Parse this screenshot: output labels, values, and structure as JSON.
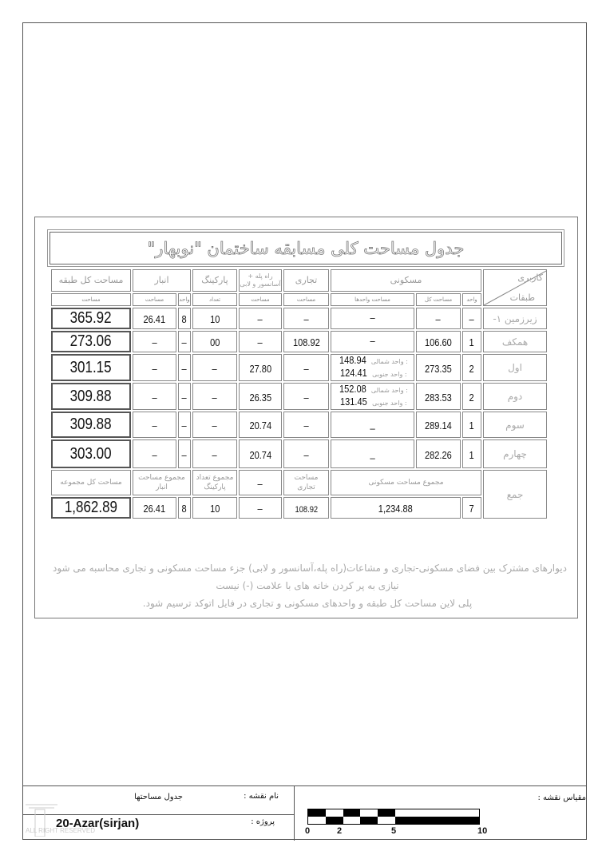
{
  "title": "جدول مساحت کلی مسابقه ساختمان \"نوبهار\"",
  "header": {
    "usage": "کاربری",
    "floors": "طبقات",
    "total_floor_area": "مساحت کل طبقه",
    "area": "مساحت",
    "storage": "انبار",
    "unit": "واحد",
    "parking": "پارکینگ",
    "count": "تعداد",
    "stairs": "راه پله + آسانسور و لابی",
    "commercial": "تجاری",
    "residential": "مسکونی",
    "units_area": "مساحت واحدها",
    "total_area": "مساحت کل"
  },
  "unit_labels": {
    "north": "واحد شمالی :",
    "south": "واحد جنوبی :"
  },
  "rows": [
    {
      "floor": "زیرزمین ۱-",
      "units": "–",
      "res_total": "–",
      "res_units": "–",
      "north": "",
      "south": "",
      "commercial": "–",
      "stairs": "–",
      "parking": "10",
      "storage_units": "8",
      "storage_area": "26.41",
      "total": "365.92"
    },
    {
      "floor": "همکف",
      "units": "1",
      "res_total": "106.60",
      "res_units": "–",
      "north": "",
      "south": "",
      "commercial": "108.92",
      "stairs": "–",
      "parking": "00",
      "storage_units": "–",
      "storage_area": "–",
      "total": "273.06"
    },
    {
      "floor": "اول",
      "units": "2",
      "res_total": "273.35",
      "res_units": "",
      "north": "148.94",
      "south": "124.41",
      "commercial": "–",
      "stairs": "27.80",
      "parking": "–",
      "storage_units": "–",
      "storage_area": "–",
      "total": "301.15"
    },
    {
      "floor": "دوم",
      "units": "2",
      "res_total": "283.53",
      "res_units": "",
      "north": "152.08",
      "south": "131.45",
      "commercial": "–",
      "stairs": "26.35",
      "parking": "–",
      "storage_units": "–",
      "storage_area": "–",
      "total": "309.88"
    },
    {
      "floor": "سوم",
      "units": "1",
      "res_total": "289.14",
      "res_units": "_",
      "north": "",
      "south": "",
      "commercial": "–",
      "stairs": "20.74",
      "parking": "–",
      "storage_units": "–",
      "storage_area": "–",
      "total": "309.88"
    },
    {
      "floor": "چهارم",
      "units": "1",
      "res_total": "282.26",
      "res_units": "_",
      "north": "",
      "south": "",
      "commercial": "–",
      "stairs": "20.74",
      "parking": "–",
      "storage_units": "–",
      "storage_area": "–",
      "total": "303.00"
    }
  ],
  "totals": {
    "label": "جمع",
    "total_label": "مساحت کل مجموعه",
    "storage_label": "مجموع مساحت انبار",
    "parking_label": "مجموع تعداد پارکینگ",
    "stairs_label": "–",
    "commercial_label": "مساحت تجاری",
    "residential_label": "مجموع مساحت مسکونی",
    "total": "1,862.89",
    "storage_area": "26.41",
    "storage_units": "8",
    "parking": "10",
    "stairs": "–",
    "commercial": "108.92",
    "residential": "1,234.88",
    "units": "7"
  },
  "notes": [
    "دیوارهای مشترک بین فضای مسکونی-تجاری و مشاعات(راه پله،آسانسور و لابی) جزء مساحت مسکونی و تجاری محاسبه می شود",
    "نیازی به پر کردن خانه های با علامت (-) نیست",
    "پلی لاین مساحت کل طبقه و واحدهای مسکونی و تجاری در فایل اتوکد ترسیم شود."
  ],
  "title_block": {
    "drawing_name_label": "نام نقشه :",
    "drawing_name": "جدول مساحتها",
    "project_label": "پروژه :",
    "project": "20-Azar(sirjan)",
    "scale_label": "مقیاس نقشه :",
    "scale_ticks": [
      "0",
      "2",
      "5",
      "10"
    ],
    "watermark": "TARHSARA ALL RIGHT RESERVED"
  }
}
